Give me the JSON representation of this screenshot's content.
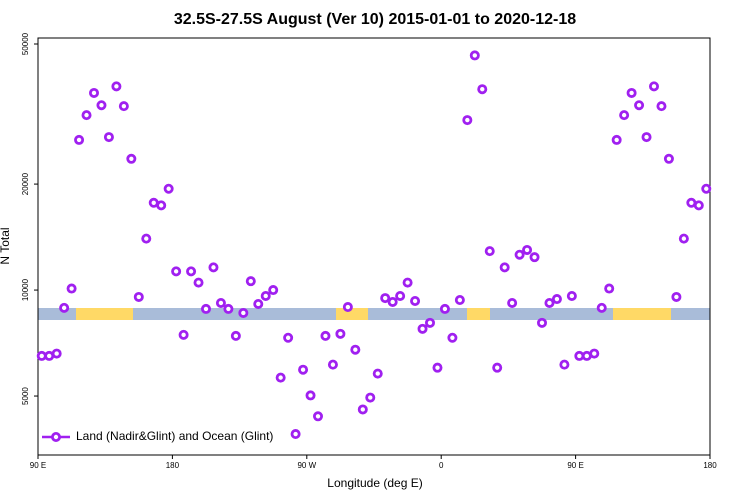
{
  "chart_data": {
    "type": "scatter",
    "title": "32.5S-27.5S August (Ver 10)   2015-01-01 to 2020-12-18",
    "xlabel": "Longitude (deg E)",
    "ylabel": "N Total",
    "xlim": [
      90,
      540
    ],
    "xticks": [
      {
        "value": 90,
        "label": "90 E"
      },
      180,
      {
        "value": 270,
        "label": "90 W"
      },
      {
        "value": 360,
        "label": "0"
      },
      {
        "value": 450,
        "label": "90 E"
      },
      {
        "value": 540,
        "label": "180"
      }
    ],
    "ylim": [
      3400,
      52000
    ],
    "log_y": true,
    "yticks": [
      5000,
      10000,
      20000,
      50000
    ],
    "legend": "bottom-left",
    "series": [
      {
        "name": "Land (Nadir&Glint) and Ocean (Glint)",
        "color": "#a020f0",
        "x": [
          92.5,
          97.5,
          102.5,
          107.5,
          112.5,
          117.5,
          122.5,
          127.5,
          132.5,
          137.5,
          142.5,
          147.5,
          152.5,
          157.5,
          162.5,
          167.5,
          172.5,
          177.5,
          182.5,
          187.5,
          192.5,
          197.5,
          202.5,
          207.5,
          212.5,
          217.5,
          222.5,
          227.5,
          232.5,
          237.5,
          242.5,
          247.5,
          252.5,
          257.5,
          262.5,
          267.5,
          272.5,
          277.5,
          282.5,
          287.5,
          292.5,
          297.5,
          302.5,
          307.5,
          312.5,
          317.5,
          322.5,
          327.5,
          332.5,
          337.5,
          342.5,
          347.5,
          352.5,
          357.5,
          362.5,
          367.5,
          372.5,
          377.5,
          382.5,
          387.5,
          392.5,
          397.5,
          402.5,
          407.5,
          412.5,
          417.5,
          422.5,
          427.5,
          432.5,
          437.5,
          442.5,
          447.5,
          452.5,
          457.5,
          462.5,
          467.5,
          472.5,
          477.5,
          482.5,
          487.5,
          492.5,
          497.5,
          502.5,
          507.5,
          512.5,
          517.5,
          522.5,
          527.5,
          532.5,
          537.5
        ],
        "values": [
          6500,
          6500,
          6600,
          8900,
          10100,
          26700,
          31400,
          36300,
          33500,
          27200,
          37900,
          33300,
          23600,
          9560,
          14000,
          17700,
          17400,
          19400,
          11300,
          7460,
          11300,
          10500,
          8840,
          11600,
          9190,
          8840,
          7410,
          8610,
          10600,
          9130,
          9620,
          10000,
          5640,
          7320,
          3900,
          5940,
          5020,
          4380,
          7410,
          6140,
          7510,
          8950,
          6770,
          4580,
          4950,
          5790,
          9490,
          9250,
          9620,
          10500,
          9310,
          7760,
          8070,
          6020,
          8840,
          7320,
          9370,
          30400,
          46400,
          37200,
          12900,
          6020,
          11600,
          9190,
          12600,
          13000,
          12400,
          8070,
          9190,
          9430,
          6140,
          9620,
          6500,
          6500,
          6600,
          8900,
          10100,
          26700,
          31400,
          36300,
          33500,
          27200,
          37900,
          33300,
          23600,
          9560,
          14000,
          17700,
          17400,
          19400
        ]
      }
    ]
  }
}
